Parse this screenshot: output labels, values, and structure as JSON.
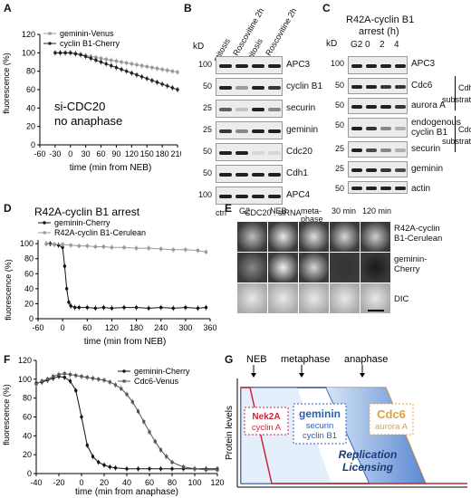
{
  "panels": {
    "A": {
      "letter": "A",
      "ylabel": "fluorescence (%)",
      "xlabel": "time (min from NEB)",
      "annotation_line1": "si-CDC20",
      "annotation_line2": "no anaphase",
      "legend": [
        "geminin-Venus",
        "cyclin B1-Cherry"
      ],
      "yticks": [
        "0",
        "20",
        "40",
        "60",
        "80",
        "100",
        "120"
      ],
      "xticks": [
        "-60",
        "-30",
        "0",
        "30",
        "60",
        "90",
        "120",
        "150",
        "180",
        "210"
      ]
    },
    "B": {
      "letter": "B",
      "kd": "kD",
      "lane_labels": [
        "mitosis",
        "+ Roscovitine 2h",
        "mitosis",
        "+ Roscovitine 2h"
      ],
      "rows": [
        {
          "mw": "100",
          "label": "APC3"
        },
        {
          "mw": "50",
          "label": "cyclin B1"
        },
        {
          "mw": "25",
          "label": "securin"
        },
        {
          "mw": "25",
          "label": "geminin"
        },
        {
          "mw": "50",
          "label": "Cdc20"
        },
        {
          "mw": "50",
          "label": "Cdh1"
        },
        {
          "mw": "100",
          "label": "APC4"
        }
      ],
      "bottom_ctrl": "ctrl",
      "bottom_sirna": "CDC20 : siRNA"
    },
    "C": {
      "letter": "C",
      "title_line1": "R42A-cyclin B1",
      "title_line2": "arrest (h)",
      "kd": "kD",
      "lane_labels": [
        "G2",
        "0",
        "2",
        "4"
      ],
      "rows": [
        {
          "mw": "100",
          "label": "APC3"
        },
        {
          "mw": "50",
          "label": "Cdc6"
        },
        {
          "mw": "50",
          "label": "aurora A"
        },
        {
          "mw": "50",
          "label": "endogenous cyclin B1"
        },
        {
          "mw": "25",
          "label": "securin"
        },
        {
          "mw": "25",
          "label": "geminin"
        },
        {
          "mw": "50",
          "label": "actin"
        }
      ],
      "group1_line1": "Cdh1",
      "group1_line2": "substrates",
      "group2_line1": "Cdc20",
      "group2_line2": "substrates"
    },
    "D": {
      "letter": "D",
      "title": "R42A-cyclin B1 arrest",
      "legend": [
        "geminin-Cherry",
        "R42A-cyclin B1-Cerulean"
      ],
      "ylabel": "fluorescence (%)",
      "xlabel": "time (min from NEB)",
      "yticks": [
        "0",
        "20",
        "40",
        "60",
        "80",
        "100"
      ],
      "xticks": [
        "-60",
        "0",
        "60",
        "120",
        "180",
        "240",
        "300",
        "360"
      ]
    },
    "E": {
      "letter": "E",
      "col_labels": [
        "G2",
        "NEB",
        "meta-phase",
        "30 min",
        "120 min"
      ],
      "row_labels": [
        "R42A-cyclin B1-Cerulean",
        "geminin-Cherry",
        "DIC"
      ]
    },
    "F": {
      "letter": "F",
      "legend": [
        "geminin-Cherry",
        "Cdc6-Venus"
      ],
      "ylabel": "fluorescence (%)",
      "xlabel": "time (min from anaphase)",
      "yticks": [
        "0",
        "20",
        "40",
        "60",
        "80",
        "100",
        "120"
      ],
      "xticks": [
        "-40",
        "-20",
        "0",
        "20",
        "40",
        "60",
        "80",
        "100",
        "120"
      ]
    },
    "G": {
      "letter": "G",
      "phases": [
        "NEB",
        "metaphase",
        "anaphase"
      ],
      "ylabel": "Protein levels",
      "box1_line1": "Nek2A",
      "box1_line2": "cyclin A",
      "box2_line1": "geminin",
      "box2_line2": "securin",
      "box2_line3": "cyclin B1",
      "box3_line1": "Cdc6",
      "box3_line2": "aurora A",
      "licensing_line1": "Replication",
      "licensing_line2": "Licensing",
      "colors": {
        "red": "#c8283c",
        "blue": "#2b5fb0",
        "orange": "#e0a040"
      }
    }
  },
  "chart_data": [
    {
      "panel": "A",
      "type": "line",
      "xlabel": "time (min from NEB)",
      "ylabel": "fluorescence (%)",
      "xlim": [
        -60,
        210
      ],
      "ylim": [
        0,
        120
      ],
      "series": [
        {
          "name": "geminin-Venus",
          "x": [
            -30,
            -20,
            -10,
            0,
            10,
            20,
            30,
            40,
            50,
            60,
            70,
            80,
            90,
            100,
            110,
            120,
            130,
            140,
            150,
            160,
            170,
            180,
            190,
            200,
            210
          ],
          "y": [
            100,
            100,
            100,
            100,
            99,
            98,
            97,
            96,
            95,
            94,
            93,
            92,
            91,
            90,
            89,
            88,
            87,
            86,
            85,
            84,
            83,
            82,
            81,
            80,
            79
          ]
        },
        {
          "name": "cyclin B1-Cherry",
          "x": [
            -30,
            -20,
            -10,
            0,
            10,
            20,
            30,
            40,
            50,
            60,
            70,
            80,
            90,
            100,
            110,
            120,
            130,
            140,
            150,
            160,
            170,
            180,
            190,
            200,
            210
          ],
          "y": [
            100,
            100,
            100,
            100,
            99,
            98,
            96,
            94,
            92,
            90,
            88,
            86,
            84,
            82,
            80,
            78,
            76,
            74,
            72,
            70,
            68,
            66,
            64,
            62,
            60
          ]
        }
      ]
    },
    {
      "panel": "D",
      "type": "line",
      "title": "R42A-cyclin B1 arrest",
      "xlabel": "time (min from NEB)",
      "ylabel": "fluorescence (%)",
      "xlim": [
        -60,
        360
      ],
      "ylim": [
        0,
        105
      ],
      "series": [
        {
          "name": "geminin-Cherry",
          "x": [
            -40,
            -30,
            -20,
            -10,
            0,
            5,
            10,
            15,
            20,
            30,
            40,
            60,
            80,
            100,
            120,
            150,
            180,
            210,
            240,
            270,
            300,
            330,
            350
          ],
          "y": [
            100,
            100,
            99,
            98,
            95,
            70,
            40,
            22,
            17,
            15,
            15,
            15,
            14,
            15,
            14,
            15,
            15,
            14,
            15,
            14,
            15,
            14,
            15
          ]
        },
        {
          "name": "R42A-cyclin B1-Cerulean",
          "x": [
            -40,
            -20,
            0,
            20,
            40,
            60,
            80,
            100,
            120,
            150,
            180,
            210,
            240,
            270,
            300,
            330,
            350
          ],
          "y": [
            100,
            99,
            99,
            98,
            97,
            97,
            96,
            96,
            95,
            95,
            94,
            94,
            93,
            92,
            92,
            91,
            89
          ]
        }
      ]
    },
    {
      "panel": "F",
      "type": "line",
      "xlabel": "time (min from anaphase)",
      "ylabel": "fluorescence (%)",
      "xlim": [
        -40,
        120
      ],
      "ylim": [
        0,
        120
      ],
      "series": [
        {
          "name": "geminin-Cherry",
          "x": [
            -40,
            -35,
            -30,
            -25,
            -20,
            -15,
            -10,
            -5,
            0,
            5,
            10,
            15,
            20,
            25,
            30,
            40,
            50,
            60,
            70,
            80,
            90,
            100,
            110,
            120
          ],
          "y": [
            96,
            97,
            99,
            101,
            103,
            102,
            98,
            88,
            60,
            30,
            18,
            12,
            9,
            7,
            6,
            5,
            5,
            5,
            5,
            5,
            5,
            5,
            5,
            5
          ]
        },
        {
          "name": "Cdc6-Venus",
          "x": [
            -40,
            -35,
            -30,
            -25,
            -20,
            -15,
            -10,
            -5,
            0,
            5,
            10,
            15,
            20,
            25,
            30,
            35,
            40,
            45,
            50,
            55,
            60,
            65,
            70,
            75,
            80,
            90,
            100,
            110,
            120
          ],
          "y": [
            95,
            98,
            100,
            103,
            105,
            106,
            105,
            104,
            103,
            102,
            101,
            100,
            99,
            97,
            94,
            90,
            84,
            76,
            66,
            55,
            44,
            34,
            25,
            18,
            12,
            7,
            5,
            4,
            4
          ]
        }
      ]
    }
  ]
}
